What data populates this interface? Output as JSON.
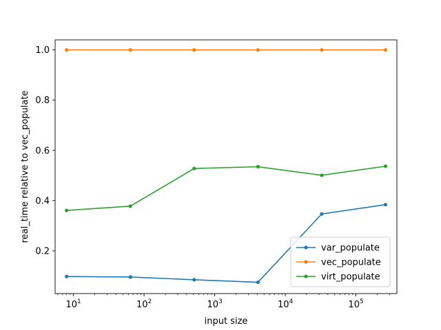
{
  "chart_data": {
    "type": "line",
    "title": "",
    "xlabel": "input size",
    "ylabel": "real_time relative to vec_populate",
    "xscale": "log",
    "xlim": [
      5.5,
      380000
    ],
    "ylim": [
      0.03,
      1.04
    ],
    "x": [
      8,
      64,
      512,
      4096,
      32768,
      262144
    ],
    "x_ticks": [
      {
        "value": 10,
        "base": "10",
        "exp": "1"
      },
      {
        "value": 100,
        "base": "10",
        "exp": "2"
      },
      {
        "value": 1000,
        "base": "10",
        "exp": "3"
      },
      {
        "value": 10000,
        "base": "10",
        "exp": "4"
      },
      {
        "value": 100000,
        "base": "10",
        "exp": "5"
      }
    ],
    "y_ticks": [
      {
        "value": 0.2,
        "label": "0.2"
      },
      {
        "value": 0.4,
        "label": "0.4"
      },
      {
        "value": 0.6,
        "label": "0.6"
      },
      {
        "value": 0.8,
        "label": "0.8"
      },
      {
        "value": 1.0,
        "label": "1.0"
      }
    ],
    "series": [
      {
        "name": "var_populate",
        "color": "#1f77b4",
        "values": [
          0.098,
          0.096,
          0.085,
          0.075,
          0.347,
          0.384
        ]
      },
      {
        "name": "vec_populate",
        "color": "#ff7f0e",
        "values": [
          1.0,
          1.0,
          1.0,
          1.0,
          1.0,
          1.0
        ]
      },
      {
        "name": "virt_populate",
        "color": "#2ca02c",
        "values": [
          0.361,
          0.378,
          0.528,
          0.535,
          0.501,
          0.537
        ]
      }
    ],
    "grid": false,
    "legend_position": "lower-right",
    "marker": "circle"
  }
}
